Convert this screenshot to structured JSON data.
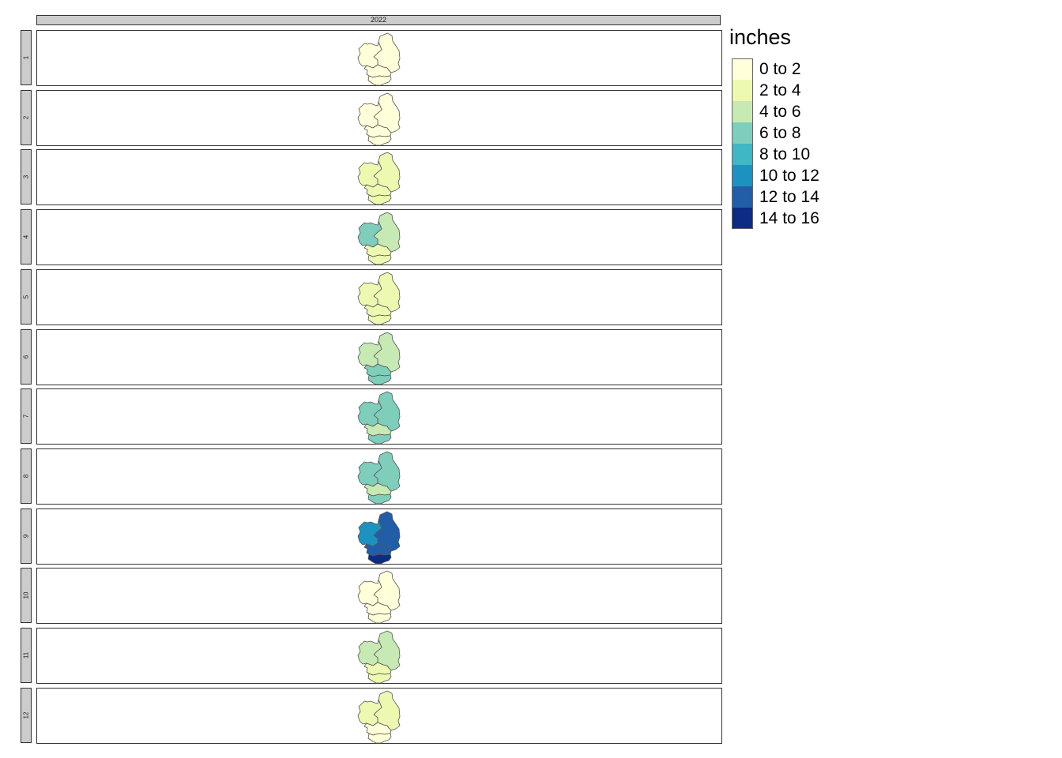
{
  "column_header": "2022",
  "legend": {
    "title": "inches",
    "items": [
      {
        "label": "0 to 2",
        "color": "#ffffd9"
      },
      {
        "label": "2 to 4",
        "color": "#edf8b1"
      },
      {
        "label": "4 to 6",
        "color": "#c7e9b4"
      },
      {
        "label": "6 to 8",
        "color": "#7fcdbb"
      },
      {
        "label": "8 to 10",
        "color": "#41b6c4"
      },
      {
        "label": "10 to 12",
        "color": "#1d91c0"
      },
      {
        "label": "12 to 14",
        "color": "#225ea8"
      },
      {
        "label": "14 to 16",
        "color": "#0c2c84"
      }
    ]
  },
  "chart_data": {
    "type": "choropleth-facets",
    "facet_column": "2022",
    "regions": [
      "east",
      "west",
      "south-middle",
      "south-bottom"
    ],
    "months": [
      {
        "label": "1",
        "classes": {
          "east": "0 to 2",
          "west": "0 to 2",
          "south-middle": "0 to 2",
          "south-bottom": "0 to 2"
        }
      },
      {
        "label": "2",
        "classes": {
          "east": "0 to 2",
          "west": "0 to 2",
          "south-middle": "0 to 2",
          "south-bottom": "0 to 2"
        }
      },
      {
        "label": "3",
        "classes": {
          "east": "2 to 4",
          "west": "2 to 4",
          "south-middle": "2 to 4",
          "south-bottom": "2 to 4"
        }
      },
      {
        "label": "4",
        "classes": {
          "east": "4 to 6",
          "west": "6 to 8",
          "south-middle": "2 to 4",
          "south-bottom": "2 to 4"
        }
      },
      {
        "label": "5",
        "classes": {
          "east": "2 to 4",
          "west": "2 to 4",
          "south-middle": "2 to 4",
          "south-bottom": "2 to 4"
        }
      },
      {
        "label": "6",
        "classes": {
          "east": "4 to 6",
          "west": "4 to 6",
          "south-middle": "6 to 8",
          "south-bottom": "6 to 8"
        }
      },
      {
        "label": "7",
        "classes": {
          "east": "6 to 8",
          "west": "6 to 8",
          "south-middle": "4 to 6",
          "south-bottom": "6 to 8"
        }
      },
      {
        "label": "8",
        "classes": {
          "east": "6 to 8",
          "west": "6 to 8",
          "south-middle": "4 to 6",
          "south-bottom": "6 to 8"
        }
      },
      {
        "label": "9",
        "classes": {
          "east": "12 to 14",
          "west": "10 to 12",
          "south-middle": "12 to 14",
          "south-bottom": "14 to 16"
        }
      },
      {
        "label": "10",
        "classes": {
          "east": "0 to 2",
          "west": "0 to 2",
          "south-middle": "0 to 2",
          "south-bottom": "0 to 2"
        }
      },
      {
        "label": "11",
        "classes": {
          "east": "4 to 6",
          "west": "4 to 6",
          "south-middle": "2 to 4",
          "south-bottom": "2 to 4"
        }
      },
      {
        "label": "12",
        "classes": {
          "east": "2 to 4",
          "west": "2 to 4",
          "south-middle": "0 to 2",
          "south-bottom": "0 to 2"
        }
      }
    ]
  }
}
